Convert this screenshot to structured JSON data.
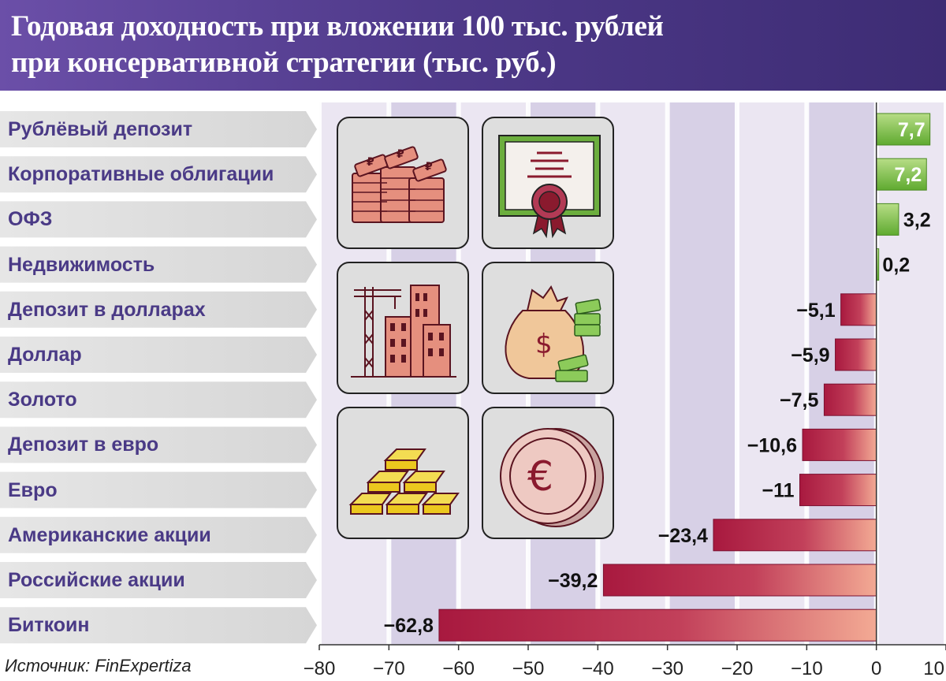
{
  "title_lines": [
    "Годовая доходность при вложении 100 тыс. рублей",
    "при консервативной стратегии (тыс. руб.)"
  ],
  "source": "Источник: FinExpertiza",
  "icons": [
    {
      "name": "ruble-banknotes-icon"
    },
    {
      "name": "bond-certificate-icon"
    },
    {
      "name": "real-estate-buildings-icon"
    },
    {
      "name": "dollar-money-bag-icon"
    },
    {
      "name": "gold-bars-icon"
    },
    {
      "name": "euro-coin-icon"
    }
  ],
  "chart_data": {
    "type": "bar",
    "orientation": "horizontal",
    "categories": [
      "Рублёвый депозит",
      "Корпоративные облигации",
      "ОФЗ",
      "Недвижимость",
      "Депозит в долларах",
      "Доллар",
      "Золото",
      "Депозит в евро",
      "Евро",
      "Американские акции",
      "Российские акции",
      "Биткоин"
    ],
    "values": [
      7.7,
      7.2,
      3.2,
      0.2,
      -5.1,
      -5.9,
      -7.5,
      -10.6,
      -11,
      -23.4,
      -39.2,
      -62.8
    ],
    "value_labels": [
      "7,7",
      "7,2",
      "3,2",
      "0,2",
      "−5,1",
      "−5,9",
      "−7,5",
      "−10,6",
      "−11",
      "−23,4",
      "−39,2",
      "−62,8"
    ],
    "xlim": [
      -80,
      10
    ],
    "xticks": [
      -80,
      -70,
      -60,
      -50,
      -40,
      -30,
      -20,
      -10,
      0,
      10
    ],
    "xtick_labels": [
      "−80",
      "−70",
      "−60",
      "−50",
      "−40",
      "−30",
      "−20",
      "−10",
      "0",
      "10"
    ],
    "grid": true,
    "colors": {
      "positive": "#6cb83a",
      "positive_light": "#b7dd86",
      "negative": "#a8193f",
      "negative_light": "#f3aa94",
      "label_text": "#4a3a86",
      "grid_band_dark": "#d7d0e6",
      "grid_band_light": "#ebe6f2"
    }
  }
}
